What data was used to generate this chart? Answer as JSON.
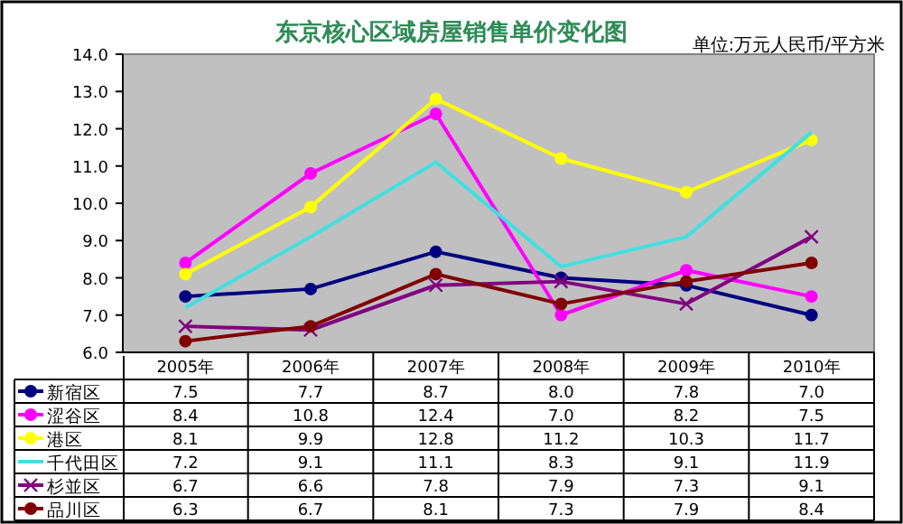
{
  "chart_data": {
    "type": "line",
    "title": "东京核心区域房屋销售单价变化图",
    "annotations": [
      "单位:万元人民币/平方米"
    ],
    "categories": [
      "2005年",
      "2006年",
      "2007年",
      "2008年",
      "2009年",
      "2010年"
    ],
    "ylim": [
      6,
      14
    ],
    "yticks": [
      {
        "value": 6,
        "label": "6.0"
      },
      {
        "value": 7,
        "label": "7.0"
      },
      {
        "value": 8,
        "label": "8.0"
      },
      {
        "value": 9,
        "label": "9.0"
      },
      {
        "value": 10,
        "label": "10.0"
      },
      {
        "value": 11,
        "label": "11.0"
      },
      {
        "value": 12,
        "label": "12.0"
      },
      {
        "value": 13,
        "label": "13.0"
      },
      {
        "value": 14,
        "label": "14.0"
      }
    ],
    "grid": false,
    "legend": "bottom",
    "line_style": "solid",
    "series": [
      {
        "name": "新宿区",
        "color": "#000080",
        "marker": "circle",
        "values": [
          7.5,
          7.7,
          8.7,
          8.0,
          7.8,
          7.0
        ],
        "value_labels": [
          "7.5",
          "7.7",
          "8.7",
          "8.0",
          "7.8",
          "7.0"
        ]
      },
      {
        "name": "涩谷区",
        "color": "#ff00ff",
        "marker": "circle",
        "values": [
          8.4,
          10.8,
          12.4,
          7.0,
          8.2,
          7.5
        ],
        "value_labels": [
          "8.4",
          "10.8",
          "12.4",
          "7.0",
          "8.2",
          "7.5"
        ]
      },
      {
        "name": "港区",
        "color": "#ffff00",
        "marker": "circle",
        "values": [
          8.1,
          9.9,
          12.8,
          11.2,
          10.3,
          11.7
        ],
        "value_labels": [
          "8.1",
          "9.9",
          "12.8",
          "11.2",
          "10.3",
          "11.7"
        ]
      },
      {
        "name": "千代田区",
        "color": "#40e0e0",
        "marker": "none",
        "values": [
          7.2,
          9.1,
          11.1,
          8.3,
          9.1,
          11.9
        ],
        "value_labels": [
          "7.2",
          "9.1",
          "11.1",
          "8.3",
          "9.1",
          "11.9"
        ]
      },
      {
        "name": "杉並区",
        "color": "#800080",
        "marker": "cross",
        "values": [
          6.7,
          6.6,
          7.8,
          7.9,
          7.3,
          9.1
        ],
        "value_labels": [
          "6.7",
          "6.6",
          "7.8",
          "7.9",
          "7.3",
          "9.1"
        ]
      },
      {
        "name": "品川区",
        "color": "#800000",
        "marker": "circle",
        "values": [
          6.3,
          6.7,
          8.1,
          7.3,
          7.9,
          8.4
        ],
        "value_labels": [
          "6.3",
          "6.7",
          "8.1",
          "7.3",
          "7.9",
          "8.4"
        ]
      }
    ]
  }
}
